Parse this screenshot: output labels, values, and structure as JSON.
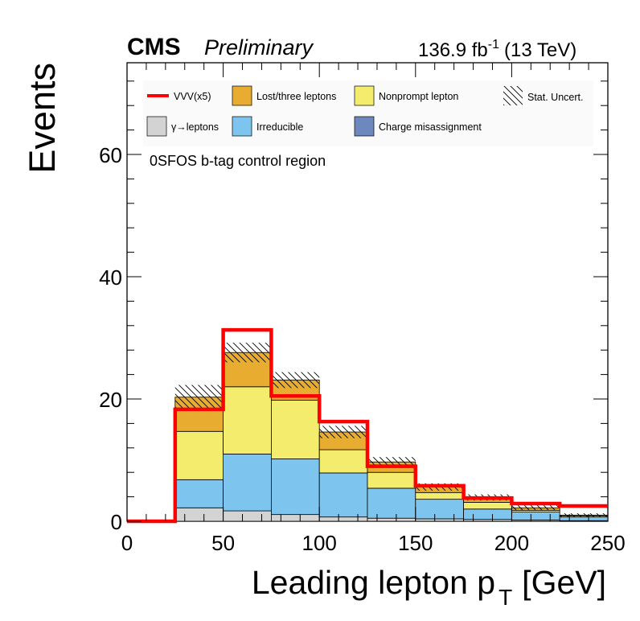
{
  "header": {
    "experiment": "CMS",
    "status": "Preliminary",
    "lumi_value": "136.9 fb",
    "lumi_exp": "-1",
    "energy": "(13 TeV)"
  },
  "region_label": "0SFOS b-tag control region",
  "legend": {
    "vvv": "VVV(x5)",
    "lost": "Lost/three leptons",
    "nonprompt": "Nonprompt lepton",
    "stat": "Stat. Uncert.",
    "gamma": "γ→leptons",
    "irreducible": "Irreducible",
    "charge": "Charge misassignment"
  },
  "colors": {
    "vvv": "#ff0000",
    "lost": "#e8ac31",
    "nonprompt": "#f4ec6c",
    "irreducible": "#7dc5ef",
    "gamma": "#d3d3d3",
    "charge": "#6d87bf"
  },
  "chart_data": {
    "type": "bar",
    "stacked": true,
    "bin_edges": [
      0,
      25,
      50,
      75,
      100,
      125,
      150,
      175,
      200,
      225,
      250
    ],
    "xlabel": "Leading lepton p",
    "xlabel_sub": "T",
    "xlabel_unit": "[GeV]",
    "ylabel": "Events",
    "xlim": [
      0,
      250
    ],
    "ylim": [
      0,
      75
    ],
    "xticks": [
      0,
      50,
      100,
      150,
      200,
      250
    ],
    "yticks": [
      0,
      20,
      40,
      60
    ],
    "series": [
      {
        "name": "γ→leptons",
        "color": "#d3d3d3",
        "values": [
          0,
          2.2,
          1.7,
          1.1,
          0.7,
          0.5,
          0.4,
          0.3,
          0.2,
          0.1
        ]
      },
      {
        "name": "Irreducible",
        "color": "#7dc5ef",
        "values": [
          0,
          4.6,
          9.3,
          9.1,
          7.2,
          4.9,
          3.2,
          1.7,
          1.3,
          0.6
        ]
      },
      {
        "name": "Nonprompt lepton",
        "color": "#f4ec6c",
        "values": [
          0,
          7.9,
          11.0,
          9.6,
          3.8,
          2.6,
          1.1,
          1.1,
          0.3,
          0.2
        ]
      },
      {
        "name": "Charge misassignment",
        "color": "#6d87bf",
        "values": [
          0,
          0,
          0,
          0,
          0,
          0,
          0,
          0,
          0,
          0
        ]
      },
      {
        "name": "Lost/three leptons",
        "color": "#e8ac31",
        "values": [
          0,
          5.6,
          5.6,
          3.3,
          2.9,
          1.7,
          0.9,
          0.8,
          0.4,
          0.1
        ]
      }
    ],
    "stat_uncertainty": [
      0,
      2.0,
      1.6,
      1.3,
      1.0,
      0.8,
      0.6,
      0.5,
      0.4,
      0.3
    ],
    "overlay": {
      "name": "VVV(x5)",
      "color": "#ff0000",
      "values": [
        0,
        18.3,
        31.3,
        20.5,
        16.3,
        9.0,
        5.8,
        3.8,
        2.9,
        2.5
      ]
    }
  }
}
